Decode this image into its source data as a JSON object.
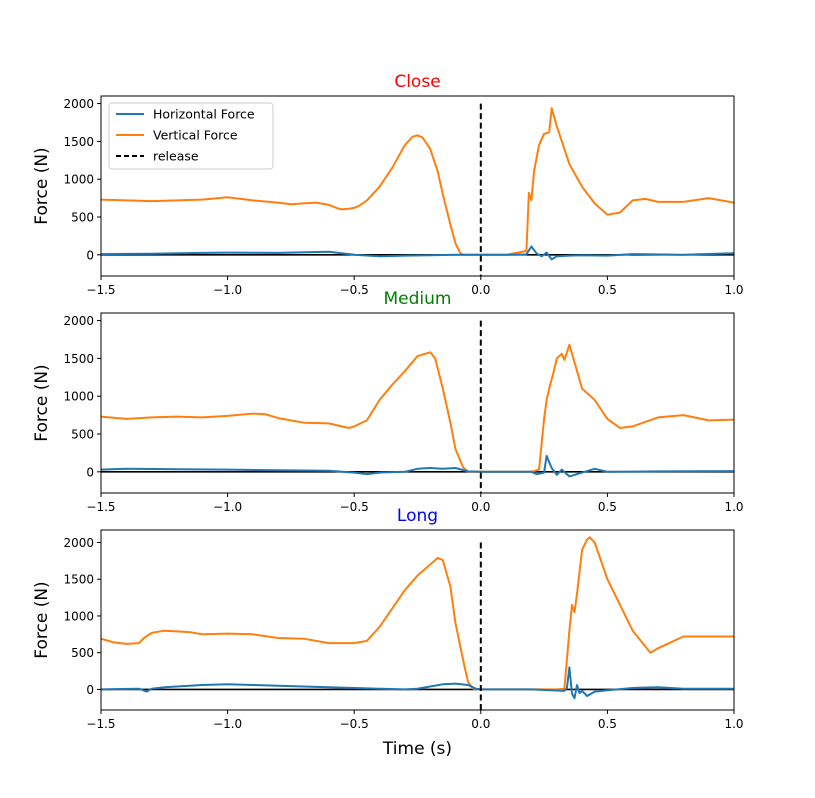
{
  "chart_data": [
    {
      "type": "line",
      "title": "Close",
      "title_color": "#ff0000",
      "xlabel": "",
      "ylabel": "Force (N)",
      "xlim": [
        -1.5,
        1.0
      ],
      "ylim": [
        -280,
        2100
      ],
      "xticks": [
        -1.5,
        -1.0,
        -0.5,
        0.0,
        0.5,
        1.0
      ],
      "xtick_labels": [
        "−1.5",
        "−1.0",
        "−0.5",
        "0.0",
        "0.5",
        "1.0"
      ],
      "yticks": [
        0,
        500,
        1000,
        1500,
        2000
      ],
      "ytick_labels": [
        "0",
        "500",
        "1000",
        "1500",
        "2000"
      ],
      "grid": false,
      "release_x": 0.0,
      "release_ymax": 2000,
      "legend": {
        "position": "top-left",
        "entries": [
          {
            "label": "Horizontal Force",
            "color": "#1f77b4",
            "style": "solid"
          },
          {
            "label": "Vertical Force",
            "color": "#ff7f0e",
            "style": "solid"
          },
          {
            "label": "release",
            "color": "#000000",
            "style": "dashed"
          }
        ]
      },
      "series": [
        {
          "name": "Vertical Force",
          "color": "#ff7f0e",
          "x": [
            -1.5,
            -1.4,
            -1.3,
            -1.2,
            -1.1,
            -1.0,
            -0.9,
            -0.8,
            -0.75,
            -0.7,
            -0.65,
            -0.6,
            -0.57,
            -0.55,
            -0.52,
            -0.5,
            -0.48,
            -0.45,
            -0.4,
            -0.35,
            -0.3,
            -0.27,
            -0.25,
            -0.23,
            -0.2,
            -0.17,
            -0.15,
            -0.12,
            -0.1,
            -0.08,
            -0.07,
            0.0,
            0.1,
            0.18,
            0.19,
            0.2,
            0.21,
            0.23,
            0.25,
            0.27,
            0.28,
            0.3,
            0.35,
            0.4,
            0.45,
            0.5,
            0.55,
            0.6,
            0.65,
            0.7,
            0.8,
            0.9,
            1.0
          ],
          "y": [
            730,
            720,
            710,
            720,
            730,
            760,
            720,
            690,
            670,
            680,
            690,
            660,
            620,
            600,
            610,
            620,
            650,
            720,
            900,
            1150,
            1450,
            1560,
            1580,
            1550,
            1400,
            1100,
            800,
            400,
            150,
            20,
            0,
            0,
            0,
            50,
            820,
            720,
            1100,
            1450,
            1600,
            1620,
            1940,
            1700,
            1200,
            900,
            680,
            530,
            560,
            720,
            740,
            700,
            700,
            750,
            690
          ]
        },
        {
          "name": "Horizontal Force",
          "color": "#1f77b4",
          "x": [
            -1.5,
            -1.3,
            -1.1,
            -1.0,
            -0.8,
            -0.6,
            -0.55,
            -0.5,
            -0.4,
            -0.3,
            -0.2,
            -0.1,
            0.0,
            0.1,
            0.18,
            0.2,
            0.22,
            0.24,
            0.26,
            0.28,
            0.3,
            0.35,
            0.4,
            0.5,
            0.6,
            0.8,
            1.0
          ],
          "y": [
            10,
            15,
            25,
            30,
            25,
            40,
            20,
            0,
            -20,
            -10,
            -5,
            0,
            0,
            0,
            5,
            110,
            20,
            -20,
            30,
            -60,
            -20,
            -10,
            -5,
            -10,
            10,
            0,
            20
          ]
        }
      ]
    },
    {
      "type": "line",
      "title": "Medium",
      "title_color": "#008000",
      "xlabel": "",
      "ylabel": "Force (N)",
      "xlim": [
        -1.5,
        1.0
      ],
      "ylim": [
        -280,
        2100
      ],
      "xticks": [
        -1.5,
        -1.0,
        -0.5,
        0.0,
        0.5,
        1.0
      ],
      "xtick_labels": [
        "−1.5",
        "−1.0",
        "−0.5",
        "0.0",
        "0.5",
        "1.0"
      ],
      "yticks": [
        0,
        500,
        1000,
        1500,
        2000
      ],
      "ytick_labels": [
        "0",
        "500",
        "1000",
        "1500",
        "2000"
      ],
      "grid": false,
      "release_x": 0.0,
      "release_ymax": 2000,
      "series": [
        {
          "name": "Vertical Force",
          "color": "#ff7f0e",
          "x": [
            -1.5,
            -1.4,
            -1.3,
            -1.2,
            -1.1,
            -1.0,
            -0.9,
            -0.85,
            -0.8,
            -0.7,
            -0.6,
            -0.55,
            -0.52,
            -0.5,
            -0.45,
            -0.4,
            -0.35,
            -0.3,
            -0.25,
            -0.2,
            -0.18,
            -0.15,
            -0.12,
            -0.1,
            -0.07,
            -0.05,
            0.0,
            0.1,
            0.2,
            0.23,
            0.25,
            0.26,
            0.27,
            0.29,
            0.3,
            0.32,
            0.33,
            0.35,
            0.37,
            0.4,
            0.45,
            0.5,
            0.55,
            0.6,
            0.7,
            0.8,
            0.9,
            1.0
          ],
          "y": [
            730,
            700,
            720,
            730,
            720,
            740,
            770,
            760,
            710,
            650,
            640,
            600,
            580,
            600,
            680,
            950,
            1150,
            1330,
            1530,
            1580,
            1500,
            1100,
            650,
            300,
            60,
            0,
            0,
            0,
            0,
            30,
            700,
            950,
            1100,
            1350,
            1500,
            1560,
            1480,
            1680,
            1450,
            1100,
            950,
            700,
            580,
            600,
            720,
            750,
            680,
            690
          ]
        },
        {
          "name": "Horizontal Force",
          "color": "#1f77b4",
          "x": [
            -1.5,
            -1.4,
            -1.2,
            -1.0,
            -0.8,
            -0.6,
            -0.5,
            -0.45,
            -0.4,
            -0.3,
            -0.25,
            -0.2,
            -0.15,
            -0.1,
            -0.05,
            0.0,
            0.2,
            0.22,
            0.25,
            0.26,
            0.28,
            0.3,
            0.32,
            0.35,
            0.4,
            0.45,
            0.5,
            0.7,
            1.0
          ],
          "y": [
            30,
            40,
            35,
            30,
            20,
            15,
            -10,
            -30,
            -10,
            0,
            40,
            50,
            40,
            50,
            5,
            0,
            0,
            -30,
            -10,
            210,
            50,
            -40,
            30,
            -60,
            -10,
            40,
            0,
            5,
            10
          ]
        }
      ]
    },
    {
      "type": "line",
      "title": "Long",
      "title_color": "#0000ff",
      "xlabel": "Time (s)",
      "ylabel": "Force (N)",
      "xlim": [
        -1.5,
        1.0
      ],
      "ylim": [
        -280,
        2170
      ],
      "xticks": [
        -1.5,
        -1.0,
        -0.5,
        0.0,
        0.5,
        1.0
      ],
      "xtick_labels": [
        "−1.5",
        "−1.0",
        "−0.5",
        "0.0",
        "0.5",
        "1.0"
      ],
      "yticks": [
        0,
        500,
        1000,
        1500,
        2000
      ],
      "ytick_labels": [
        "0",
        "500",
        "1000",
        "1500",
        "2000"
      ],
      "grid": false,
      "release_x": 0.0,
      "release_ymax": 2000,
      "series": [
        {
          "name": "Vertical Force",
          "color": "#ff7f0e",
          "x": [
            -1.5,
            -1.45,
            -1.4,
            -1.35,
            -1.33,
            -1.3,
            -1.25,
            -1.2,
            -1.15,
            -1.1,
            -1.0,
            -0.9,
            -0.8,
            -0.7,
            -0.6,
            -0.5,
            -0.45,
            -0.4,
            -0.35,
            -0.3,
            -0.25,
            -0.2,
            -0.17,
            -0.15,
            -0.12,
            -0.1,
            -0.07,
            -0.05,
            -0.03,
            0.0,
            0.1,
            0.2,
            0.3,
            0.33,
            0.35,
            0.36,
            0.37,
            0.38,
            0.4,
            0.42,
            0.43,
            0.45,
            0.5,
            0.6,
            0.67,
            0.7,
            0.8,
            0.9,
            1.0
          ],
          "y": [
            690,
            640,
            620,
            630,
            700,
            770,
            800,
            790,
            780,
            750,
            760,
            750,
            700,
            690,
            630,
            630,
            660,
            850,
            1100,
            1350,
            1550,
            1700,
            1790,
            1760,
            1400,
            900,
            400,
            100,
            10,
            0,
            0,
            0,
            0,
            10,
            800,
            1150,
            1050,
            1300,
            1900,
            2040,
            2070,
            2000,
            1500,
            800,
            500,
            560,
            720,
            720,
            720
          ]
        },
        {
          "name": "Horizontal Force",
          "color": "#1f77b4",
          "x": [
            -1.5,
            -1.35,
            -1.32,
            -1.3,
            -1.25,
            -1.2,
            -1.1,
            -1.0,
            -0.9,
            -0.8,
            -0.7,
            -0.6,
            -0.5,
            -0.4,
            -0.3,
            -0.25,
            -0.2,
            -0.15,
            -0.1,
            -0.05,
            -0.02,
            0.0,
            0.2,
            0.33,
            0.34,
            0.35,
            0.36,
            0.37,
            0.38,
            0.39,
            0.4,
            0.42,
            0.45,
            0.5,
            0.6,
            0.7,
            0.8,
            1.0
          ],
          "y": [
            0,
            10,
            -30,
            10,
            30,
            40,
            60,
            70,
            60,
            50,
            40,
            30,
            20,
            10,
            0,
            10,
            40,
            70,
            80,
            60,
            10,
            0,
            0,
            -20,
            20,
            300,
            -60,
            -120,
            60,
            -50,
            -20,
            -90,
            -30,
            -10,
            20,
            30,
            10,
            10
          ]
        }
      ]
    }
  ]
}
